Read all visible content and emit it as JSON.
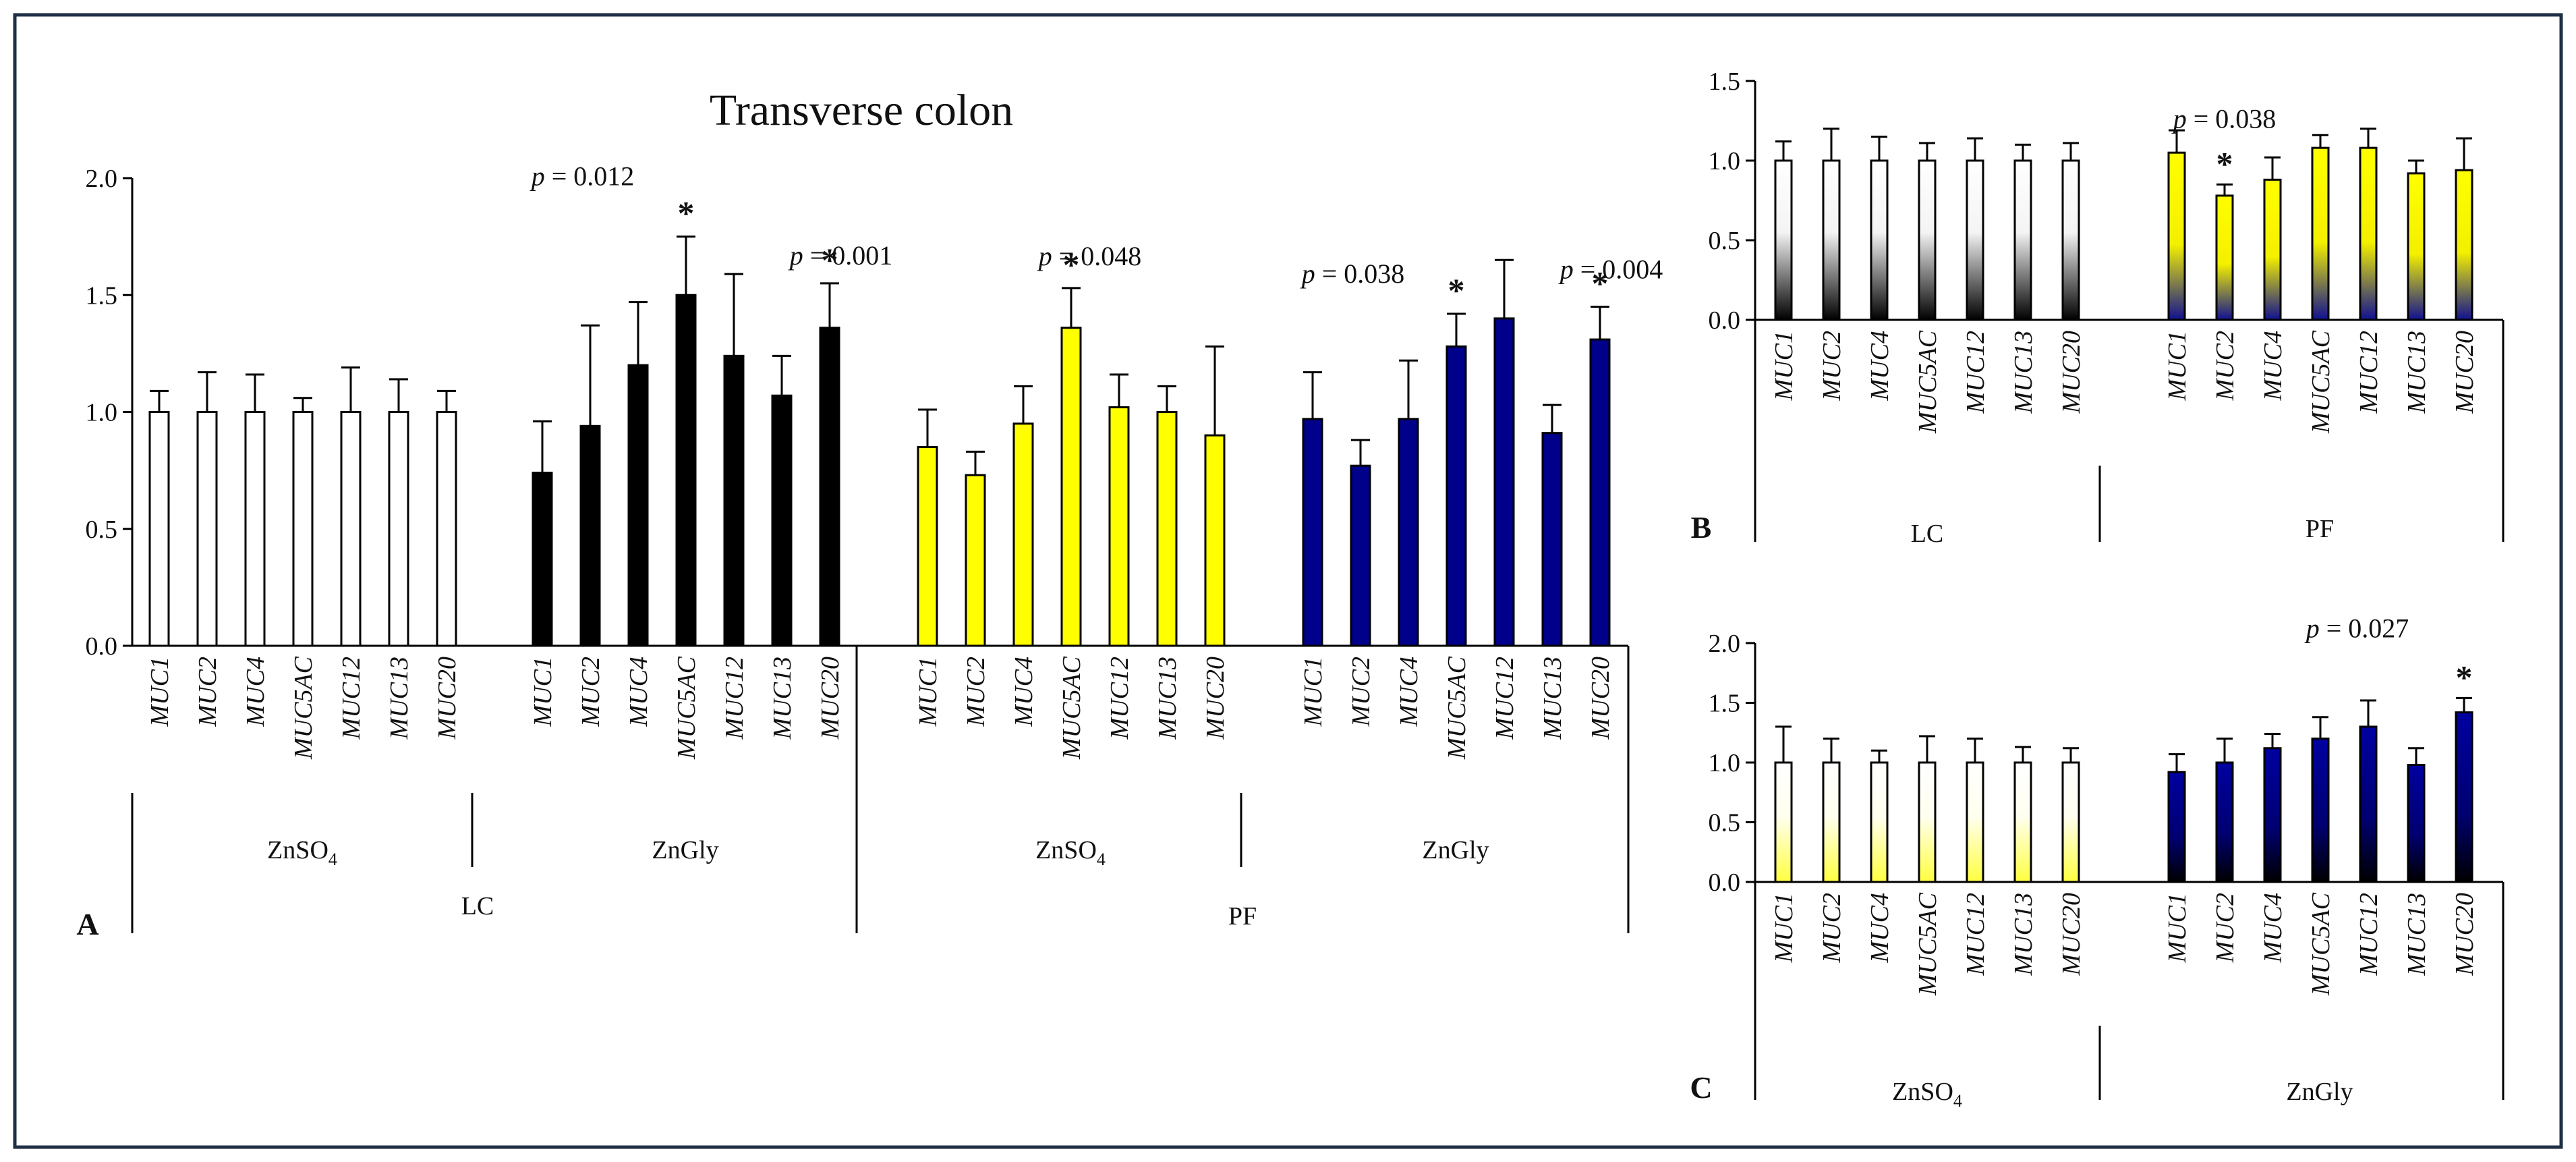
{
  "colors": {
    "frame": "#1f2f45",
    "axis": "#000000",
    "white_fill": "#ffffff",
    "black_fill": "#000000",
    "yellow_fill": "#ffff00",
    "blue_fill": "#00008b",
    "bar_stroke": "#000000"
  },
  "chart_data": [
    {
      "panel": "A",
      "type": "bar",
      "title": "Transverse colon",
      "ylim": [
        0,
        2.0
      ],
      "yticks": [
        "0.0",
        "0.5",
        "1.0",
        "1.5",
        "2.0"
      ],
      "categories": [
        "MUC1",
        "MUC2",
        "MUC4",
        "MUC5AC",
        "MUC12",
        "MUC13",
        "MUC20"
      ],
      "groups": [
        {
          "label": "ZnSO4",
          "label_main": "ZnSO",
          "label_sub": "4",
          "fill": "white",
          "values": [
            1.0,
            1.0,
            1.0,
            1.0,
            1.0,
            1.0,
            1.0
          ],
          "errors": [
            0.09,
            0.17,
            0.16,
            0.06,
            0.19,
            0.14,
            0.09
          ],
          "stars": [],
          "pvalues": []
        },
        {
          "label": "ZnGly",
          "label_main": "ZnGly",
          "label_sub": "",
          "fill": "black",
          "values": [
            0.74,
            0.94,
            1.2,
            1.5,
            1.24,
            1.07,
            1.36
          ],
          "errors": [
            0.22,
            0.43,
            0.27,
            0.25,
            0.35,
            0.17,
            0.19
          ],
          "stars": [
            3,
            6
          ],
          "pvalues": [
            {
              "index": 3,
              "text": " = 0.012"
            },
            {
              "index": 6,
              "text": " = 0.001"
            }
          ]
        },
        {
          "label": "ZnSO4",
          "label_main": "ZnSO",
          "label_sub": "4",
          "fill": "yellow",
          "values": [
            0.85,
            0.73,
            0.95,
            1.36,
            1.02,
            1.0,
            0.9
          ],
          "errors": [
            0.16,
            0.1,
            0.16,
            0.17,
            0.14,
            0.11,
            0.38
          ],
          "stars": [
            3
          ],
          "pvalues": [
            {
              "index": 3,
              "text": " = 0.048"
            }
          ]
        },
        {
          "label": "ZnGly",
          "label_main": "ZnGly",
          "label_sub": "",
          "fill": "blue",
          "values": [
            0.97,
            0.77,
            0.97,
            1.28,
            1.4,
            0.91,
            1.31
          ],
          "errors": [
            0.2,
            0.11,
            0.25,
            0.14,
            0.25,
            0.12,
            0.14
          ],
          "stars": [
            3,
            6
          ],
          "pvalues": [
            {
              "index": 3,
              "text": " = 0.038"
            },
            {
              "index": 6,
              "text": " = 0.004"
            }
          ]
        }
      ],
      "super_groups": [
        "LC",
        "PF"
      ]
    },
    {
      "panel": "B",
      "type": "bar",
      "ylim": [
        0,
        1.5
      ],
      "yticks": [
        "0.0",
        "0.5",
        "1.0",
        "1.5"
      ],
      "categories": [
        "MUC1",
        "MUC2",
        "MUC4",
        "MUC5AC",
        "MUC12",
        "MUC13",
        "MUC20"
      ],
      "groups": [
        {
          "label": "LC",
          "fill": "white-black",
          "values": [
            1.0,
            1.0,
            1.0,
            1.0,
            1.0,
            1.0,
            1.0
          ],
          "errors": [
            0.12,
            0.2,
            0.15,
            0.11,
            0.14,
            0.1,
            0.11
          ],
          "stars": [],
          "pvalues": []
        },
        {
          "label": "PF",
          "fill": "yellow-blue",
          "values": [
            1.05,
            0.78,
            0.88,
            1.08,
            1.08,
            0.92,
            0.94
          ],
          "errors": [
            0.14,
            0.07,
            0.14,
            0.08,
            0.12,
            0.08,
            0.2
          ],
          "stars": [
            1
          ],
          "pvalues": [
            {
              "index": 1,
              "text": " = 0.038"
            }
          ]
        }
      ]
    },
    {
      "panel": "C",
      "type": "bar",
      "ylim": [
        0,
        2.0
      ],
      "yticks": [
        "0.0",
        "0.5",
        "1.0",
        "1.5",
        "2.0"
      ],
      "categories": [
        "MUC1",
        "MUC2",
        "MUC4",
        "MUC5AC",
        "MUC12",
        "MUC13",
        "MUC20"
      ],
      "groups": [
        {
          "label": "ZnSO4",
          "label_main": "ZnSO",
          "label_sub": "4",
          "fill": "white-yellow",
          "values": [
            1.0,
            1.0,
            1.0,
            1.0,
            1.0,
            1.0,
            1.0
          ],
          "errors": [
            0.3,
            0.2,
            0.1,
            0.22,
            0.2,
            0.13,
            0.12
          ],
          "stars": [],
          "pvalues": []
        },
        {
          "label": "ZnGly",
          "label_main": "ZnGly",
          "label_sub": "",
          "fill": "blue-black",
          "values": [
            0.92,
            1.0,
            1.12,
            1.2,
            1.3,
            0.98,
            1.42
          ],
          "errors": [
            0.15,
            0.2,
            0.12,
            0.18,
            0.22,
            0.14,
            0.12
          ],
          "stars": [
            6
          ],
          "pvalues": [
            {
              "index": 6,
              "text": " = 0.027"
            }
          ]
        }
      ]
    }
  ],
  "labels": {
    "p_symbol": "p",
    "star": "*"
  }
}
